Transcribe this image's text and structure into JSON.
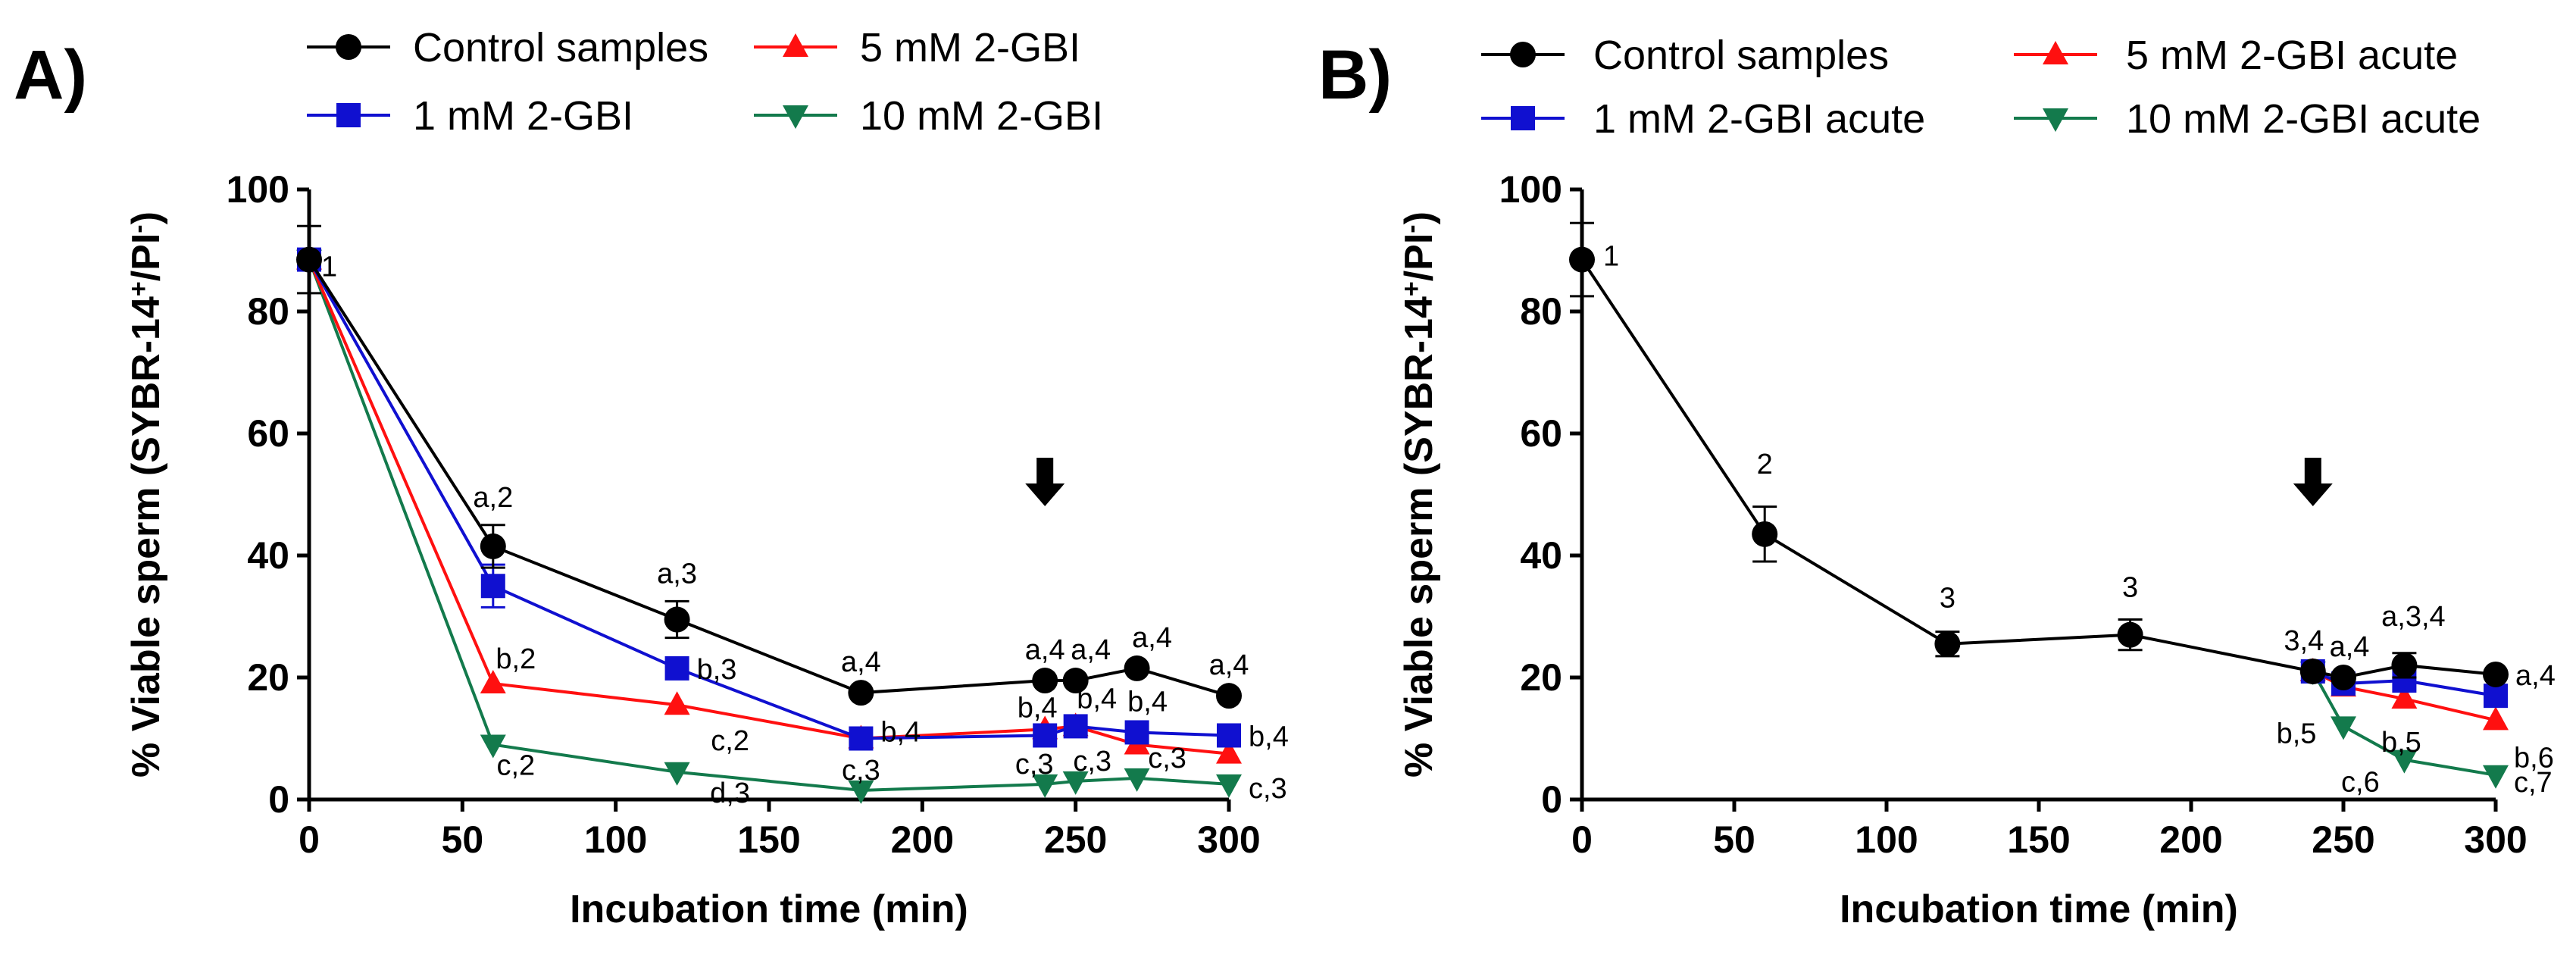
{
  "chart_data": [
    {
      "type": "line",
      "panel": "A)",
      "xlabel": "Incubation time (min)",
      "ylabel_main": "% Viable sperm (SYBR-14",
      "ylabel_sup1": "+",
      "ylabel_mid": "/PI",
      "ylabel_sup2": "-",
      "ylabel_end": ")",
      "xlim": [
        0,
        300
      ],
      "ylim": [
        0,
        100
      ],
      "xticks": [
        0,
        50,
        100,
        150,
        200,
        250,
        300
      ],
      "yticks": [
        0,
        20,
        40,
        60,
        80,
        100
      ],
      "grid": false,
      "legend_position": "top",
      "arrow_at_x": 240,
      "series": [
        {
          "name": "Control samples",
          "color": "#000000",
          "marker": "circle",
          "x": [
            0,
            60,
            120,
            180,
            240,
            250,
            270,
            300
          ],
          "y": [
            88.5,
            41.5,
            29.5,
            17.5,
            19.5,
            19.5,
            21.5,
            17
          ],
          "err": [
            5.5,
            3.5,
            3,
            0,
            0,
            0,
            0,
            0
          ],
          "labels": [
            "1",
            "a,2",
            "a,3",
            "a,4",
            "a,4",
            "a,4",
            "a,4",
            "a,4"
          ]
        },
        {
          "name": "1 mM 2-GBI",
          "color": "#1010d0",
          "marker": "square",
          "x": [
            0,
            60,
            120,
            180,
            240,
            250,
            270,
            300
          ],
          "y": [
            88.5,
            35,
            21.5,
            10,
            10.5,
            12,
            11,
            10.5
          ],
          "err": [
            0,
            3.5,
            0,
            0,
            0,
            0,
            0,
            0
          ],
          "labels": [
            "",
            "",
            "b,3",
            "b,4",
            "b,4",
            "b,4",
            "b,4",
            "b,4"
          ]
        },
        {
          "name": "5 mM 2-GBI",
          "color": "#ff1010",
          "marker": "triangle-up",
          "x": [
            0,
            60,
            120,
            180,
            240,
            250,
            270,
            300
          ],
          "y": [
            88.5,
            19,
            15.5,
            10,
            11.5,
            12,
            9,
            7.5
          ],
          "err": [
            0,
            0,
            0,
            0,
            0,
            0,
            0,
            0
          ],
          "labels": [
            "",
            "b,2",
            "c,2",
            "",
            "",
            "",
            "",
            ""
          ]
        },
        {
          "name": "10 mM 2-GBI",
          "color": "#137a4c",
          "marker": "triangle-down",
          "x": [
            0,
            60,
            120,
            180,
            240,
            250,
            270,
            300
          ],
          "y": [
            88.5,
            9,
            4.5,
            1.5,
            2.5,
            3,
            3.5,
            2.5
          ],
          "err": [
            0,
            0,
            0,
            0,
            0,
            0,
            0,
            0
          ],
          "labels": [
            "",
            "c,2",
            "d,3",
            "c,3",
            "c,3",
            "c,3",
            "c,3",
            "c,3"
          ]
        }
      ]
    },
    {
      "type": "line",
      "panel": "B)",
      "xlabel": "Incubation time (min)",
      "ylabel_main": "% Viable sperm (SYBR-14",
      "ylabel_sup1": "+",
      "ylabel_mid": "/PI",
      "ylabel_sup2": "-",
      "ylabel_end": ")",
      "xlim": [
        0,
        300
      ],
      "ylim": [
        0,
        100
      ],
      "xticks": [
        0,
        50,
        100,
        150,
        200,
        250,
        300
      ],
      "yticks": [
        0,
        20,
        40,
        60,
        80,
        100
      ],
      "grid": false,
      "legend_position": "top",
      "arrow_at_x": 240,
      "series": [
        {
          "name": "Control samples",
          "color": "#000000",
          "marker": "circle",
          "x": [
            0,
            60,
            120,
            180,
            240,
            250,
            270,
            300
          ],
          "y": [
            88.5,
            43.5,
            25.5,
            27,
            21,
            20,
            22,
            20.5
          ],
          "err": [
            6,
            4.5,
            2,
            2.5,
            0,
            0,
            2,
            0
          ],
          "labels": [
            "1",
            "2",
            "3",
            "3",
            "3,4",
            "a,4",
            "a,3,4",
            "a,4"
          ]
        },
        {
          "name": "1 mM 2-GBI acute",
          "color": "#1010d0",
          "marker": "square",
          "x": [
            240,
            250,
            270,
            300
          ],
          "y": [
            21,
            19,
            19.5,
            17
          ],
          "err": [
            0,
            0,
            0,
            0
          ],
          "labels": [
            "",
            "",
            "",
            ""
          ]
        },
        {
          "name": "5 mM 2-GBI acute",
          "color": "#ff1010",
          "marker": "triangle-up",
          "x": [
            240,
            250,
            270,
            300
          ],
          "y": [
            21,
            18.5,
            16.5,
            13
          ],
          "err": [
            0,
            0,
            0,
            0
          ],
          "labels": [
            "",
            "",
            "b,5",
            "b,6"
          ]
        },
        {
          "name": "10 mM 2-GBI acute",
          "color": "#137a4c",
          "marker": "triangle-down",
          "x": [
            240,
            250,
            270,
            300
          ],
          "y": [
            21,
            12,
            6.5,
            4
          ],
          "err": [
            0,
            0,
            0,
            0
          ],
          "labels": [
            "",
            "b,5",
            "c,6",
            "c,7"
          ]
        }
      ]
    }
  ]
}
